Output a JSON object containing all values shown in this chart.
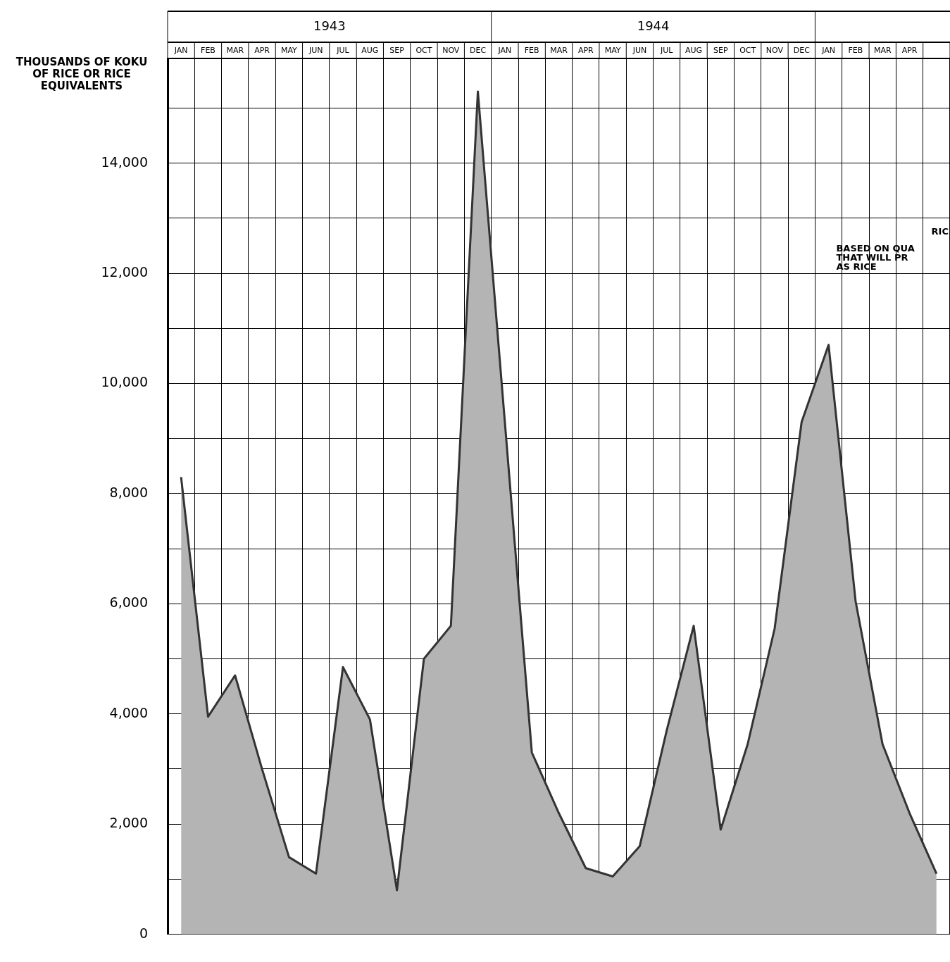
{
  "chart_data": {
    "type": "area",
    "ylabel": "THOUSANDS OF KOKU\nOF RICE OR RICE\nEQUIVALENTS",
    "categories": [
      "JAN",
      "FEB",
      "MAR",
      "APR",
      "MAY",
      "JUN",
      "JUL",
      "AUG",
      "SEP",
      "OCT",
      "NOV",
      "DEC",
      "JAN",
      "FEB",
      "MAR",
      "APR",
      "MAY",
      "JUN",
      "JUL",
      "AUG",
      "SEP",
      "OCT",
      "NOV",
      "DEC",
      "JAN",
      "FEB",
      "MAR",
      "APR",
      null
    ],
    "series": [
      {
        "color": "#b4b4b4",
        "values": [
          8300,
          3950,
          4700,
          3000,
          1400,
          1100,
          4850,
          3900,
          800,
          5000,
          5600,
          15300,
          9300,
          3300,
          2200,
          1200,
          1050,
          1600,
          3700,
          5600,
          1900,
          3450,
          5550,
          9300,
          10700,
          6050,
          3450,
          2200,
          1100
        ]
      }
    ],
    "ylim": [
      0,
      15900
    ],
    "yticks": [
      0,
      {
        "value": 1000,
        "label": null
      },
      {
        "value": 2000,
        "label": "2,000"
      },
      {
        "value": 3000,
        "label": null
      },
      {
        "value": 4000,
        "label": "4,000"
      },
      {
        "value": 5000,
        "label": null
      },
      {
        "value": 6000,
        "label": "6,000"
      },
      {
        "value": 7000,
        "label": null
      },
      {
        "value": 8000,
        "label": "8,000"
      },
      {
        "value": 9000,
        "label": null
      },
      {
        "value": 10000,
        "label": "10,000"
      },
      {
        "value": 11000,
        "label": null
      },
      {
        "value": 12000,
        "label": "12,000"
      },
      {
        "value": 13000,
        "label": null
      },
      {
        "value": 14000,
        "label": "14,000"
      },
      {
        "value": 15000,
        "label": null
      }
    ],
    "grid": true,
    "legend": false,
    "annotations": [
      "1943",
      "1944",
      "RIC",
      "BASED ON QUA\nTHAT WILL PR\nAS RICE"
    ]
  }
}
